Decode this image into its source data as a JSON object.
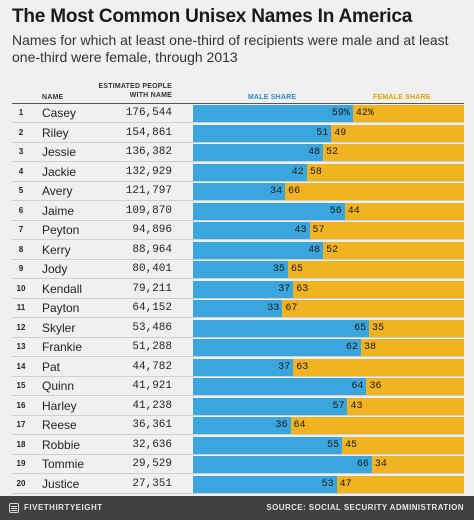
{
  "header": {
    "title": "The Most Common Unisex Names In America",
    "subtitle": "Names for which at least one-third of recipients were male and at least one-third were female, through 2013"
  },
  "columns": {
    "name": "NAME",
    "estimated": "ESTIMATED PEOPLE WITH NAME",
    "male": "MALE SHARE",
    "female": "FEMALE SHARE"
  },
  "colors": {
    "male": "#3aa6dd",
    "female": "#f2b322"
  },
  "chart_data": {
    "type": "bar",
    "title": "The Most Common Unisex Names In America",
    "categories": [
      "Casey",
      "Riley",
      "Jessie",
      "Jackie",
      "Avery",
      "Jaime",
      "Peyton",
      "Kerry",
      "Jody",
      "Kendall",
      "Payton",
      "Skyler",
      "Frankie",
      "Pat",
      "Quinn",
      "Harley",
      "Reese",
      "Robbie",
      "Tommie",
      "Justice"
    ],
    "ranks": [
      1,
      2,
      3,
      4,
      5,
      6,
      7,
      8,
      9,
      10,
      11,
      12,
      13,
      14,
      15,
      16,
      17,
      18,
      19,
      20
    ],
    "estimated_people": [
      "176,544",
      "154,861",
      "136,382",
      "132,929",
      "121,797",
      "109,870",
      "94,896",
      "88,964",
      "80,401",
      "79,211",
      "64,152",
      "53,486",
      "51,288",
      "44,782",
      "41,921",
      "41,238",
      "36,361",
      "32,636",
      "29,529",
      "27,351"
    ],
    "male_labels": [
      "59%",
      "51",
      "48",
      "42",
      "34",
      "56",
      "43",
      "48",
      "35",
      "37",
      "33",
      "65",
      "62",
      "37",
      "64",
      "57",
      "36",
      "55",
      "66",
      "53"
    ],
    "female_labels": [
      "42%",
      "49",
      "52",
      "58",
      "66",
      "44",
      "57",
      "52",
      "65",
      "63",
      "67",
      "35",
      "38",
      "63",
      "36",
      "43",
      "64",
      "45",
      "34",
      "47"
    ],
    "series": [
      {
        "name": "MALE SHARE",
        "values": [
          59,
          51,
          48,
          42,
          34,
          56,
          43,
          48,
          35,
          37,
          33,
          65,
          62,
          37,
          64,
          57,
          36,
          55,
          66,
          53
        ]
      },
      {
        "name": "FEMALE SHARE",
        "values": [
          42,
          49,
          52,
          58,
          66,
          44,
          57,
          52,
          65,
          63,
          67,
          35,
          38,
          63,
          36,
          43,
          64,
          45,
          34,
          47
        ]
      }
    ],
    "stacked": true,
    "orientation": "horizontal",
    "xlim": [
      0,
      100
    ]
  },
  "footer": {
    "brand": "FIVETHIRTYEIGHT",
    "source": "SOURCE: SOCIAL SECURITY ADMINISTRATION"
  }
}
